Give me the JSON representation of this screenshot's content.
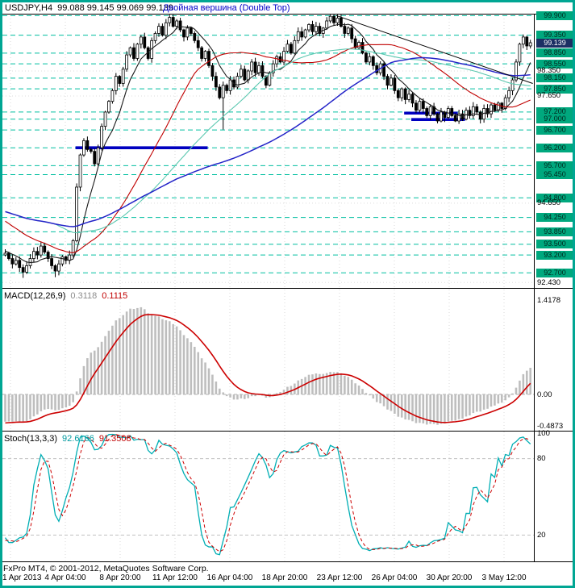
{
  "window": {
    "title": "USDJPY,H4",
    "ohlc_text": "99.088 99.145 99.069 99.139",
    "annotation": "Двойная вершина (Double Top)",
    "copyright": "FxPro MT4, © 2001-2012, MetaQuotes Software Corp."
  },
  "colors": {
    "frame": "#00A693",
    "level_line": "#00BFA0",
    "level_badge_bg": "#00A87E",
    "current_badge_bg": "#1C2F63",
    "bull": "#FFFFFF",
    "bear": "#000000",
    "candle_outline": "#000000",
    "macd_hist": "#BEBEBE",
    "macd_signal": "#CC0000",
    "stoch_main": "#00AEB4",
    "stoch_signal": "#CC0000",
    "support_line": "#0000C0",
    "trendline": "#000000",
    "annotation_color": "#0000C8",
    "grid": "#D9D9D9"
  },
  "chart_data": [
    {
      "type": "candlestick",
      "symbol": "USDJPY",
      "timeframe": "H4",
      "x_labels": [
        "1 Apr 2013",
        "4 Apr 04:00",
        "8 Apr 20:00",
        "11 Apr 12:00",
        "16 Apr 04:00",
        "18 Apr 20:00",
        "23 Apr 12:00",
        "26 Apr 04:00",
        "30 Apr 20:00",
        "3 May 12:00"
      ],
      "y_plain_ticks": [
        "98.350",
        "97.650",
        "94.650",
        "92.430"
      ],
      "y_range": [
        92.3,
        100.02
      ],
      "levels": [
        "99.900",
        "99.350",
        "98.850",
        "98.550",
        "98.150",
        "97.850",
        "97.200",
        "97.000",
        "96.700",
        "96.200",
        "95.700",
        "95.450",
        "94.800",
        "94.250",
        "93.850",
        "93.500",
        "93.200",
        "92.700"
      ],
      "current_price": "99.139",
      "pre_closes": [
        95.9,
        95.8,
        95.85,
        95.7,
        95.6,
        95.65,
        95.5,
        95.35,
        95.4,
        95.2,
        95.1,
        95.15,
        95.0,
        94.85,
        94.9,
        94.75,
        94.6,
        94.65,
        94.5,
        94.35,
        94.4,
        94.25,
        94.1,
        94.15,
        94.0,
        93.9,
        93.95,
        93.8,
        93.7,
        93.75,
        93.6,
        93.5,
        93.55,
        93.45,
        93.35,
        93.4,
        93.3,
        93.25,
        93.3,
        93.2
      ],
      "closes": [
        93.25,
        93.1,
        92.95,
        93.05,
        92.85,
        92.72,
        92.9,
        93.1,
        93.3,
        93.2,
        93.45,
        93.28,
        93.1,
        92.9,
        92.75,
        92.95,
        93.15,
        93.05,
        93.2,
        93.6,
        95.1,
        96.0,
        96.4,
        96.15,
        96.1,
        95.75,
        96.2,
        96.8,
        97.2,
        97.5,
        97.8,
        98.2,
        98.0,
        98.4,
        98.8,
        99.0,
        98.7,
        99.1,
        99.3,
        99.0,
        98.7,
        99.2,
        99.4,
        99.6,
        99.35,
        99.7,
        99.85,
        99.6,
        99.75,
        99.5,
        99.3,
        99.55,
        99.4,
        99.2,
        99.0,
        98.7,
        98.9,
        98.5,
        98.2,
        97.9,
        97.6,
        97.95,
        97.8,
        98.1,
        97.9,
        98.2,
        98.4,
        98.1,
        98.35,
        98.6,
        98.3,
        98.5,
        98.2,
        97.95,
        98.3,
        98.55,
        98.75,
        98.6,
        98.9,
        99.1,
        98.85,
        99.2,
        99.45,
        99.3,
        99.5,
        99.65,
        99.45,
        99.6,
        99.4,
        99.55,
        99.75,
        99.88,
        99.7,
        99.83,
        99.6,
        99.4,
        99.55,
        99.25,
        99.0,
        99.15,
        98.85,
        98.6,
        98.75,
        98.5,
        98.3,
        98.55,
        98.2,
        97.95,
        98.15,
        97.8,
        97.6,
        97.85,
        97.55,
        97.7,
        97.45,
        97.25,
        97.5,
        97.3,
        97.1,
        97.35,
        97.15,
        96.95,
        97.2,
        97.05,
        97.3,
        97.1,
        96.95,
        97.15,
        97.0,
        97.25,
        97.1,
        97.35,
        97.2,
        97.0,
        97.3,
        97.15,
        97.4,
        97.25,
        97.45,
        97.3,
        97.6,
        97.8,
        98.1,
        98.6,
        99.1,
        99.3,
        99.05,
        99.14
      ],
      "wick_overrides": {
        "5": {
          "low": 92.56
        },
        "14": {
          "low": 92.58
        },
        "46": {
          "high": 99.95
        },
        "61": {
          "low": 96.71
        },
        "91": {
          "high": 99.93
        },
        "145": {
          "high": 99.37
        }
      },
      "moving_averages": [
        {
          "period": 8,
          "color": "#1A1A1A"
        },
        {
          "period": 34,
          "color": "#C00000"
        },
        {
          "period": 55,
          "color": "#5CC8B0"
        },
        {
          "period": 89,
          "color": "#2424C8"
        }
      ],
      "support_segments": [
        {
          "price": 96.2,
          "from": 20,
          "to": 57
        },
        {
          "price": 97.17,
          "from": 112,
          "to": 127
        },
        {
          "price": 96.99,
          "from": 114,
          "to": 129
        }
      ],
      "trendline": {
        "from_index": 93,
        "from_price": 99.9,
        "to_index": 148,
        "to_price": 98.0
      }
    },
    {
      "type": "macd",
      "label": "MACD(12,26,9)",
      "main_value": "0.3118",
      "signal_value": "0.1115",
      "params": [
        12,
        26,
        9
      ],
      "y_ticks": [
        "1.4178",
        "0.00",
        "-0.4873"
      ]
    },
    {
      "type": "stochastic",
      "label": "Stoch(13,3,3)",
      "main_value": "92.6166",
      "signal_value": "91.3508",
      "params": [
        13,
        3,
        3
      ],
      "y_ticks": [
        "100",
        "80",
        "20"
      ],
      "levels": [
        80,
        20
      ]
    }
  ]
}
